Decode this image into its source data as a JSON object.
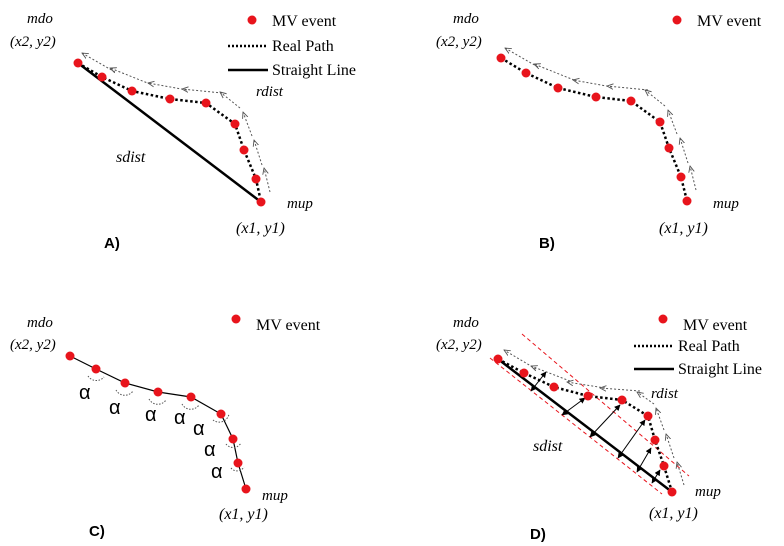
{
  "colors": {
    "event": "#e8141c",
    "line": "#000000",
    "guide": "#e8141c",
    "arrow": "#555555"
  },
  "panels": [
    {
      "panel_label": "A)",
      "legend": [
        {
          "symbol": "dot",
          "label": "MV event"
        },
        {
          "symbol": "dotted",
          "label": "Real Path"
        },
        {
          "symbol": "solid",
          "label": "Straight Line"
        }
      ],
      "start_name": "mdo",
      "start_coords": "(x2, y2)",
      "end_name": "mup",
      "end_coords": "(x1, y1)",
      "straight_label": "sdist",
      "real_label": "rdist"
    },
    {
      "panel_label": "B)",
      "legend": [
        {
          "symbol": "dot",
          "label": "MV event"
        }
      ],
      "start_name": "mdo",
      "start_coords": "(x2, y2)",
      "end_name": "mup",
      "end_coords": "(x1, y1)"
    },
    {
      "panel_label": "C)",
      "legend": [
        {
          "symbol": "dot",
          "label": "MV event"
        }
      ],
      "start_name": "mdo",
      "start_coords": "(x2, y2)",
      "end_name": "mup",
      "end_coords": "(x1, y1)",
      "angle_symbol": "α"
    },
    {
      "panel_label": "D)",
      "legend": [
        {
          "symbol": "dot",
          "label": "MV event"
        },
        {
          "symbol": "dotted",
          "label": "Real Path"
        },
        {
          "symbol": "solid",
          "label": "Straight Line"
        }
      ],
      "start_name": "mdo",
      "start_coords": "(x2, y2)",
      "end_name": "mup",
      "end_coords": "(x1, y1)",
      "straight_label": "sdist",
      "real_label": "rdist"
    }
  ]
}
